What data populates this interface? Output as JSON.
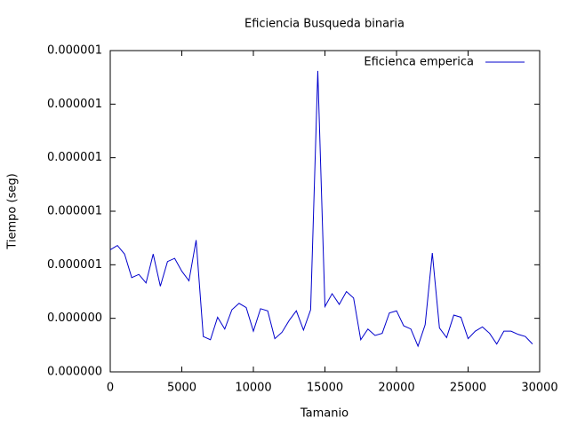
{
  "chart_data": {
    "type": "line",
    "title": "Eficiencia Busqueda binaria",
    "x_label": "Tamanio",
    "y_label": "Tiempo (seg)",
    "legend": "top-right",
    "x": [
      0,
      500,
      1000,
      1500,
      2000,
      2500,
      3000,
      3500,
      4000,
      4500,
      5000,
      5500,
      6000,
      6500,
      7000,
      7500,
      8000,
      8500,
      9000,
      9500,
      10000,
      10500,
      11000,
      11500,
      12000,
      12500,
      13000,
      13500,
      14000,
      14500,
      15000,
      15500,
      16000,
      16500,
      17000,
      17500,
      18000,
      18500,
      19000,
      19500,
      20000,
      20500,
      21000,
      21500,
      22000,
      22500,
      23000,
      23500,
      24000,
      24500,
      25000,
      25500,
      26000,
      26500,
      27000,
      27500,
      28000,
      28500,
      29000,
      29500
    ],
    "series": [
      {
        "name": "Eficienca emperica",
        "color": "#0000cc",
        "values": [
          5.14e-07,
          5.18e-07,
          5.1e-07,
          4.88e-07,
          4.91e-07,
          4.83e-07,
          5.1e-07,
          4.8e-07,
          5.03e-07,
          5.06e-07,
          4.94e-07,
          4.85e-07,
          5.23e-07,
          4.33e-07,
          4.3e-07,
          4.51e-07,
          4.4e-07,
          4.58e-07,
          4.64e-07,
          4.6e-07,
          4.38e-07,
          4.59e-07,
          4.57e-07,
          4.31e-07,
          4.37e-07,
          4.48e-07,
          4.57e-07,
          4.39e-07,
          4.58e-07,
          6.81e-07,
          4.61e-07,
          4.73e-07,
          4.63e-07,
          4.75e-07,
          4.69e-07,
          4.3e-07,
          4.4e-07,
          4.34e-07,
          4.36e-07,
          4.55e-07,
          4.57e-07,
          4.43e-07,
          4.4e-07,
          4.24e-07,
          4.44e-07,
          5.11e-07,
          4.41e-07,
          4.32e-07,
          4.53e-07,
          4.51e-07,
          4.31e-07,
          4.38e-07,
          4.42e-07,
          4.36e-07,
          4.26e-07,
          4.38e-07,
          4.38e-07,
          4.35e-07,
          4.33e-07,
          4.26e-07
        ]
      }
    ],
    "xlim": [
      0,
      30000
    ],
    "xticks": [
      0,
      5000,
      10000,
      15000,
      20000,
      25000,
      30000
    ],
    "ylim": [
      4e-07,
      7e-07
    ],
    "yticks": [
      {
        "value": 4e-07,
        "label": "0.000000"
      },
      {
        "value": 4.5e-07,
        "label": "0.000000"
      },
      {
        "value": 5e-07,
        "label": "0.000001"
      },
      {
        "value": 5.5e-07,
        "label": "0.000001"
      },
      {
        "value": 6e-07,
        "label": "0.000001"
      },
      {
        "value": 6.5e-07,
        "label": "0.000001"
      },
      {
        "value": 7e-07,
        "label": "0.000001"
      }
    ],
    "grid": false
  }
}
